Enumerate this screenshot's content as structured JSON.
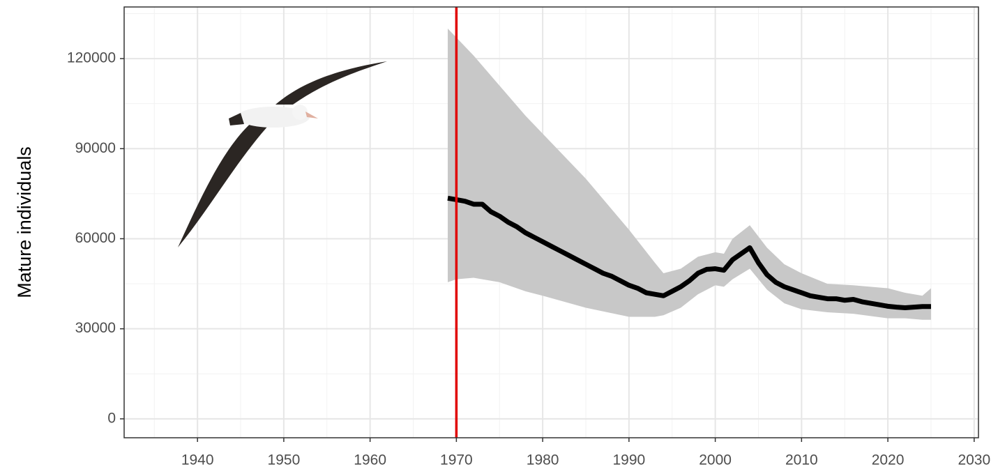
{
  "chart_data": {
    "type": "line",
    "y_label": "Mature individuals",
    "x": [
      1969,
      1970,
      1971,
      1972,
      1973,
      1974,
      1975,
      1976,
      1977,
      1978,
      1979,
      1980,
      1981,
      1982,
      1983,
      1984,
      1985,
      1986,
      1987,
      1988,
      1989,
      1990,
      1991,
      1992,
      1993,
      1994,
      1995,
      1996,
      1997,
      1998,
      1999,
      2000,
      2001,
      2002,
      2003,
      2004,
      2005,
      2006,
      2007,
      2008,
      2009,
      2010,
      2011,
      2012,
      2013,
      2014,
      2015,
      2016,
      2017,
      2018,
      2019,
      2020,
      2021,
      2022,
      2023,
      2024,
      2025
    ],
    "series": [
      {
        "color": "#000000",
        "values": [
          73500,
          73000,
          72500,
          71500,
          71500,
          69000,
          67500,
          65500,
          64000,
          62000,
          60500,
          59000,
          57500,
          56000,
          54500,
          53000,
          51500,
          50000,
          48500,
          47500,
          46000,
          44500,
          43500,
          42000,
          41500,
          41000,
          42500,
          44000,
          46000,
          48500,
          49800,
          50000,
          49500,
          53000,
          55000,
          57000,
          52000,
          48000,
          45500,
          44000,
          43000,
          42000,
          41000,
          40500,
          40000,
          40000,
          39500,
          39800,
          39000,
          38500,
          38000,
          37500,
          37200,
          37000,
          37200,
          37400,
          37400
        ]
      }
    ],
    "ribbon": {
      "color": "#c8c8c8",
      "x": [
        1969,
        1970,
        1972,
        1975,
        1978,
        1980,
        1985,
        1990,
        1993,
        1994,
        1996,
        1998,
        2000,
        2001,
        2002,
        2004,
        2006,
        2008,
        2010,
        2013,
        2016,
        2020,
        2022,
        2024,
        2025
      ],
      "upper": [
        130000,
        127000,
        121000,
        111000,
        101000,
        95000,
        80000,
        63000,
        52000,
        48500,
        50000,
        54000,
        55500,
        55000,
        60000,
        64500,
        57000,
        51500,
        48500,
        45000,
        44500,
        43500,
        42000,
        41000,
        43500
      ],
      "lower": [
        45500,
        46500,
        47000,
        45500,
        42500,
        41000,
        37000,
        34000,
        34000,
        34500,
        37000,
        41500,
        44500,
        44000,
        46500,
        50000,
        43000,
        38500,
        36500,
        35500,
        35000,
        33500,
        33500,
        33000,
        33000
      ]
    },
    "vline": {
      "x": 1970,
      "color": "#e00000"
    },
    "xlim": [
      1931.5,
      2030.5
    ],
    "ylim": [
      -6300,
      137200
    ],
    "xticks": [
      1940,
      1950,
      1960,
      1970,
      1980,
      1990,
      2000,
      2010,
      2020,
      2030
    ],
    "yticks": [
      0,
      30000,
      60000,
      90000,
      120000
    ],
    "minor_xticks": [
      1935,
      1945,
      1955,
      1965,
      1975,
      1985,
      1995,
      2005,
      2015,
      2025
    ],
    "minor_yticks": [
      15000,
      45000,
      75000,
      105000,
      135000
    ],
    "grid": true
  }
}
